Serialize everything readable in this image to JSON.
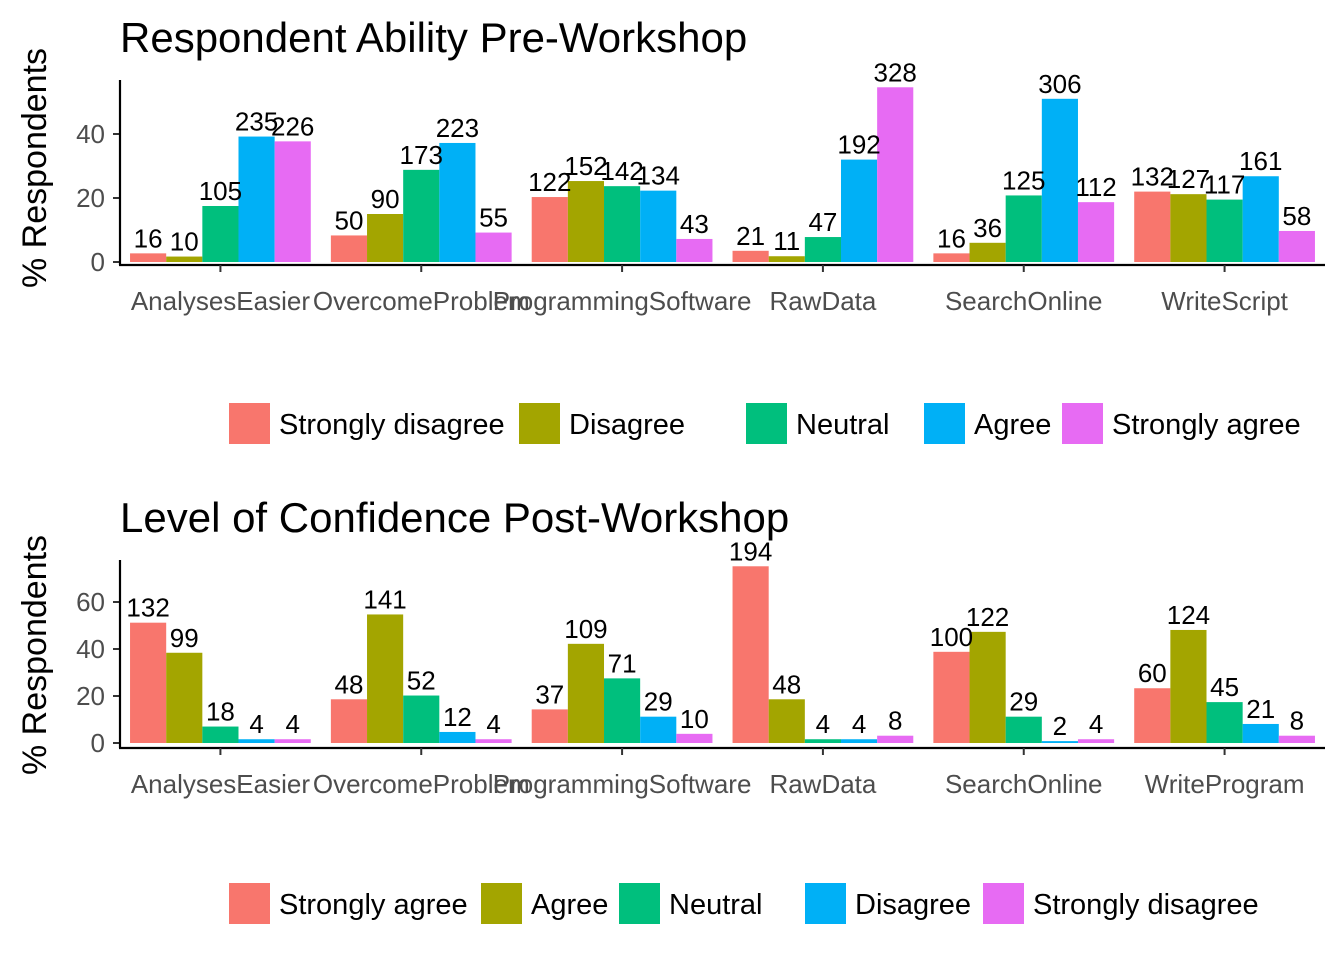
{
  "chart_data": [
    {
      "type": "bar",
      "title": "Respondent Ability Pre-Workshop",
      "xlabel": "",
      "ylabel": "% Respondents",
      "ylim": [
        0,
        57
      ],
      "yticks": [
        0,
        20,
        40
      ],
      "grid": false,
      "legend_position": "bottom",
      "categories": [
        "AnalysesEasier",
        "OvercomeProblem",
        "ProgrammingSoftware",
        "RawData",
        "SearchOnline",
        "WriteScript"
      ],
      "series": [
        {
          "name": "Strongly disagree",
          "color": "#F8766D",
          "values": [
            2.7,
            8.3,
            20.3,
            3.5,
            2.7,
            22.0
          ],
          "labels": [
            "16",
            "50",
            "122",
            "21",
            "16",
            "132"
          ]
        },
        {
          "name": "Disagree",
          "color": "#A3A500",
          "values": [
            1.7,
            15.0,
            25.3,
            1.8,
            6.0,
            21.2
          ],
          "labels": [
            "10",
            "90",
            "152",
            "11",
            "36",
            "127"
          ]
        },
        {
          "name": "Neutral",
          "color": "#00BF7D",
          "values": [
            17.5,
            28.8,
            23.7,
            7.8,
            20.8,
            19.5
          ],
          "labels": [
            "105",
            "173",
            "142",
            "47",
            "125",
            "117"
          ]
        },
        {
          "name": "Agree",
          "color": "#00B0F6",
          "values": [
            39.2,
            37.2,
            22.3,
            32.0,
            51.0,
            26.8
          ],
          "labels": [
            "235",
            "223",
            "134",
            "192",
            "306",
            "161"
          ]
        },
        {
          "name": "Strongly agree",
          "color": "#E76BF3",
          "values": [
            37.7,
            9.2,
            7.2,
            54.6,
            18.7,
            9.7
          ],
          "labels": [
            "226",
            "55",
            "43",
            "328",
            "112",
            "58"
          ]
        }
      ]
    },
    {
      "type": "bar",
      "title": "Level of Confidence Post-Workshop",
      "xlabel": "",
      "ylabel": "% Respondents",
      "ylim": [
        0,
        79
      ],
      "yticks": [
        0,
        20,
        40,
        60
      ],
      "grid": false,
      "legend_position": "bottom",
      "categories": [
        "AnalysesEasier",
        "OvercomeProblem",
        "ProgrammingSoftware",
        "RawData",
        "SearchOnline",
        "WriteProgram"
      ],
      "series": [
        {
          "name": "Strongly agree",
          "color": "#F8766D",
          "values": [
            51.2,
            18.6,
            14.3,
            75.2,
            38.8,
            23.3
          ],
          "labels": [
            "132",
            "48",
            "37",
            "194",
            "100",
            "60"
          ]
        },
        {
          "name": "Agree",
          "color": "#A3A500",
          "values": [
            38.4,
            54.7,
            42.2,
            18.6,
            47.3,
            48.1
          ],
          "labels": [
            "99",
            "141",
            "109",
            "48",
            "122",
            "124"
          ]
        },
        {
          "name": "Neutral",
          "color": "#00BF7D",
          "values": [
            7.0,
            20.2,
            27.5,
            1.6,
            11.2,
            17.4
          ],
          "labels": [
            "18",
            "52",
            "71",
            "4",
            "29",
            "45"
          ]
        },
        {
          "name": "Disagree",
          "color": "#00B0F6",
          "values": [
            1.6,
            4.7,
            11.2,
            1.6,
            0.8,
            8.1
          ],
          "labels": [
            "4",
            "12",
            "29",
            "4",
            "2",
            "21"
          ]
        },
        {
          "name": "Strongly disagree",
          "color": "#E76BF3",
          "values": [
            1.6,
            1.6,
            3.9,
            3.1,
            1.6,
            3.1
          ],
          "labels": [
            "4",
            "4",
            "10",
            "8",
            "4",
            "8"
          ]
        }
      ]
    }
  ]
}
